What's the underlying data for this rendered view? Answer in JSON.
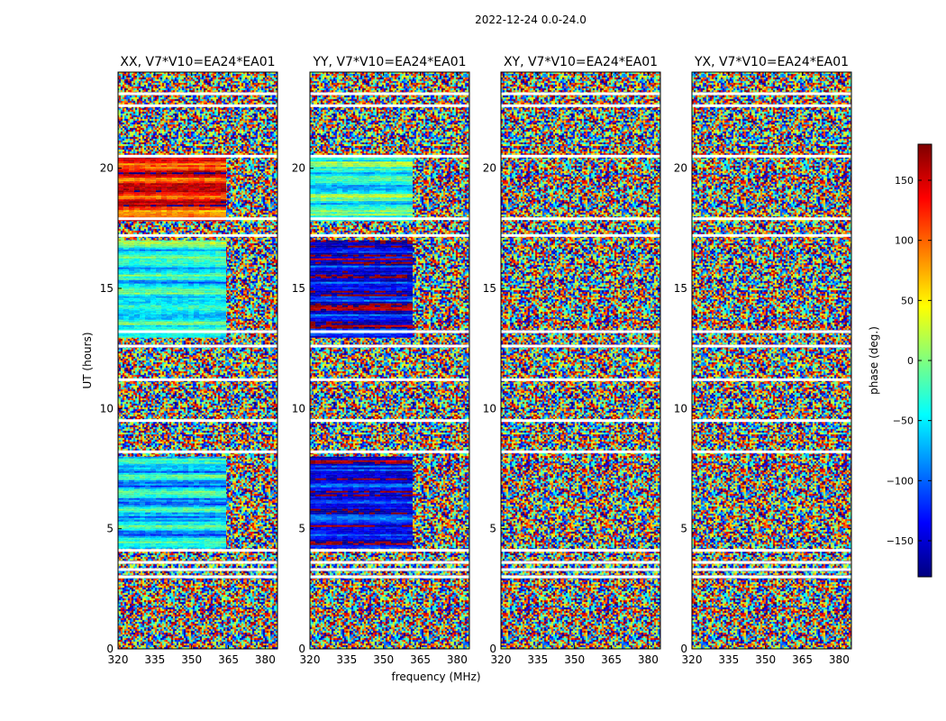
{
  "figure": {
    "suptitle": "2022-12-24 0.0-24.0"
  },
  "chart_data": {
    "type": "heatmap",
    "panels": [
      {
        "title": "XX, V7*V10=EA24*EA01"
      },
      {
        "title": "YY, V7*V10=EA24*EA01"
      },
      {
        "title": "XY, V7*V10=EA24*EA01"
      },
      {
        "title": "YX, V7*V10=EA24*EA01"
      }
    ],
    "xlabel": "frequency (MHz)",
    "ylabel": "UT (hours)",
    "xlim": [
      320,
      385
    ],
    "ylim": [
      0,
      24
    ],
    "xticks": [
      320,
      335,
      350,
      365,
      380
    ],
    "yticks": [
      0,
      5,
      10,
      15,
      20
    ],
    "colorbar": {
      "label": "phase (deg.)",
      "range": [
        -180,
        180
      ],
      "ticks": [
        -150,
        -100,
        -50,
        0,
        50,
        100,
        150
      ],
      "colormap": "jet",
      "colors": [
        "#00007f",
        "#0000ff",
        "#007fff",
        "#00ffff",
        "#7fff7f",
        "#ffff00",
        "#ff7f00",
        "#ff0000",
        "#7f0000"
      ]
    },
    "flagged_hours": [
      3.0,
      3.3,
      3.6,
      4.1,
      8.2,
      9.5,
      11.2,
      12.6,
      13.2,
      17.2,
      17.9,
      20.5,
      22.6,
      23.1
    ],
    "coherent_regions": [
      {
        "panel": "XX",
        "ut_range": [
          4.2,
          8.0
        ],
        "freq_range": [
          320,
          362
        ],
        "phase_deg": -60
      },
      {
        "panel": "XX",
        "ut_range": [
          13.0,
          17.0
        ],
        "freq_range": [
          320,
          362
        ],
        "phase_deg": -40
      },
      {
        "panel": "XX",
        "ut_range": [
          17.8,
          20.5
        ],
        "freq_range": [
          320,
          362
        ],
        "phase_deg": 130
      },
      {
        "panel": "YY",
        "ut_range": [
          4.2,
          8.0
        ],
        "freq_range": [
          320,
          360
        ],
        "phase_deg": -140
      },
      {
        "panel": "YY",
        "ut_range": [
          13.0,
          17.0
        ],
        "freq_range": [
          320,
          360
        ],
        "phase_deg": -150
      },
      {
        "panel": "YY",
        "ut_range": [
          17.8,
          20.5
        ],
        "freq_range": [
          320,
          360
        ],
        "phase_deg": -30
      }
    ]
  }
}
